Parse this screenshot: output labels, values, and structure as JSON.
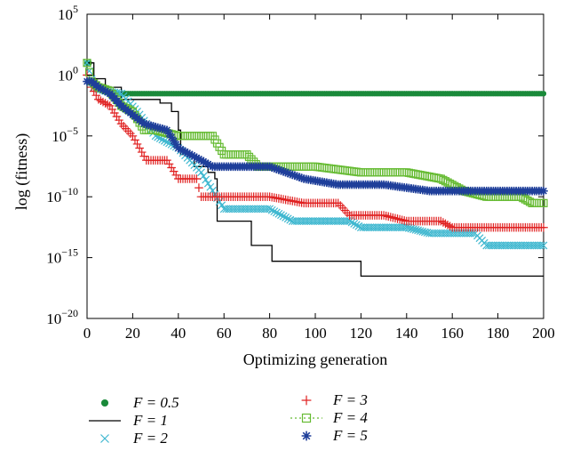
{
  "chart_data": {
    "type": "line",
    "title": "",
    "xlabel": "Optimizing generation",
    "ylabel": "log (fitness)",
    "xlim": [
      0,
      200
    ],
    "ylim": [
      1e-20,
      100000.0
    ],
    "y_scale": "log",
    "grid": false,
    "legend_position": "bottom",
    "x_ticks": [
      "0",
      "20",
      "40",
      "60",
      "80",
      "100",
      "120",
      "140",
      "160",
      "180",
      "200"
    ],
    "x_tick_values": [
      0,
      20,
      40,
      60,
      80,
      100,
      120,
      140,
      160,
      180,
      200
    ],
    "y_ticks": [
      {
        "base": "10",
        "exp": "5",
        "value": 5
      },
      {
        "base": "10",
        "exp": "0",
        "value": 0
      },
      {
        "base": "10",
        "exp": "−5",
        "value": -5
      },
      {
        "base": "10",
        "exp": "−10",
        "value": -10
      },
      {
        "base": "10",
        "exp": "−15",
        "value": -15
      },
      {
        "base": "10",
        "exp": "−20",
        "value": -20
      }
    ],
    "series": [
      {
        "name": "F = 0.5",
        "color": "#1a8a3a",
        "marker": "dot",
        "line": false,
        "points": [
          [
            0,
            10.0
          ],
          [
            2,
            0.3
          ],
          [
            4,
            0.1
          ],
          [
            6,
            0.06
          ],
          [
            8,
            0.04
          ],
          [
            10,
            0.03
          ],
          [
            200,
            0.03
          ]
        ]
      },
      {
        "name": "F = 1",
        "color": "#000000",
        "marker": "none",
        "line": true,
        "points": [
          [
            0,
            10.0
          ],
          [
            3,
            0.5
          ],
          [
            8,
            0.1
          ],
          [
            15,
            0.01
          ],
          [
            25,
            0.01
          ],
          [
            32,
            0.005
          ],
          [
            37,
            0.001
          ],
          [
            40,
            3e-05
          ],
          [
            41,
            3e-07
          ],
          [
            47,
            3e-08
          ],
          [
            53,
            1e-08
          ],
          [
            56,
            3e-09
          ],
          [
            57,
            1e-12
          ],
          [
            70,
            1e-12
          ],
          [
            72,
            1e-14
          ],
          [
            80,
            1e-14
          ],
          [
            81,
            5e-16
          ],
          [
            119,
            5e-16
          ],
          [
            120,
            3e-17
          ],
          [
            200,
            3e-17
          ]
        ]
      },
      {
        "name": "F = 2",
        "color": "#40b8d0",
        "marker": "x",
        "line": false,
        "points": [
          [
            0,
            10.0
          ],
          [
            3,
            0.1
          ],
          [
            8,
            0.05
          ],
          [
            15,
            0.03
          ],
          [
            22,
            0.001
          ],
          [
            30,
            1e-05
          ],
          [
            40,
            1e-06
          ],
          [
            45,
            1e-07
          ],
          [
            50,
            1e-08
          ],
          [
            60,
            1e-11
          ],
          [
            80,
            1e-11
          ],
          [
            90,
            1e-12
          ],
          [
            100,
            1e-12
          ],
          [
            115,
            1e-12
          ],
          [
            120,
            3e-13
          ],
          [
            140,
            3e-13
          ],
          [
            150,
            1e-13
          ],
          [
            170,
            1e-13
          ],
          [
            175,
            1e-14
          ],
          [
            200,
            1e-14
          ]
        ]
      },
      {
        "name": "F = 3",
        "color": "#e02020",
        "marker": "plus",
        "line": false,
        "points": [
          [
            0,
            1.0
          ],
          [
            2,
            0.1
          ],
          [
            5,
            0.01
          ],
          [
            10,
            0.003
          ],
          [
            15,
            0.0001
          ],
          [
            20,
            1e-05
          ],
          [
            26,
            1e-07
          ],
          [
            35,
            1e-07
          ],
          [
            40,
            3e-09
          ],
          [
            48,
            3e-09
          ],
          [
            50,
            1e-10
          ],
          [
            80,
            1e-10
          ],
          [
            95,
            3e-11
          ],
          [
            110,
            3e-11
          ],
          [
            115,
            3e-12
          ],
          [
            130,
            3e-12
          ],
          [
            140,
            1e-12
          ],
          [
            155,
            1e-12
          ],
          [
            160,
            3e-13
          ],
          [
            200,
            3e-13
          ]
        ]
      },
      {
        "name": "F = 4",
        "color": "#66bb33",
        "marker": "square",
        "line": false,
        "points": [
          [
            0,
            10.0
          ],
          [
            2,
            0.3
          ],
          [
            5,
            0.1
          ],
          [
            10,
            0.05
          ],
          [
            15,
            0.003
          ],
          [
            20,
            0.001
          ],
          [
            25,
            3e-05
          ],
          [
            30,
            3e-05
          ],
          [
            40,
            1e-05
          ],
          [
            55,
            1e-05
          ],
          [
            60,
            3e-07
          ],
          [
            70,
            3e-07
          ],
          [
            75,
            3e-08
          ],
          [
            100,
            3e-08
          ],
          [
            120,
            1e-08
          ],
          [
            140,
            1e-08
          ],
          [
            155,
            3e-09
          ],
          [
            165,
            3e-10
          ],
          [
            175,
            1e-10
          ],
          [
            190,
            1e-10
          ],
          [
            195,
            3e-11
          ],
          [
            200,
            3e-11
          ]
        ]
      },
      {
        "name": "F = 5",
        "color": "#1f3f9a",
        "marker": "star",
        "line": false,
        "points": [
          [
            0,
            0.3
          ],
          [
            2,
            0.3
          ],
          [
            5,
            0.1
          ],
          [
            10,
            0.03
          ],
          [
            15,
            0.003
          ],
          [
            25,
            0.0001
          ],
          [
            35,
            3e-05
          ],
          [
            40,
            1e-06
          ],
          [
            50,
            1e-07
          ],
          [
            55,
            3e-08
          ],
          [
            80,
            3e-08
          ],
          [
            95,
            3e-09
          ],
          [
            110,
            1e-09
          ],
          [
            130,
            1e-09
          ],
          [
            150,
            3e-10
          ],
          [
            170,
            3e-10
          ],
          [
            200,
            3e-10
          ]
        ]
      }
    ]
  },
  "legend": [
    {
      "label": "F = 0.5",
      "color": "#1a8a3a",
      "marker": "dot"
    },
    {
      "label": "F = 1",
      "color": "#000000",
      "marker": "line"
    },
    {
      "label": "F = 2",
      "color": "#40b8d0",
      "marker": "x"
    },
    {
      "label": "F = 3",
      "color": "#e02020",
      "marker": "plus"
    },
    {
      "label": "F = 4",
      "color": "#66bb33",
      "marker": "square"
    },
    {
      "label": "F = 5",
      "color": "#1f3f9a",
      "marker": "star"
    }
  ]
}
